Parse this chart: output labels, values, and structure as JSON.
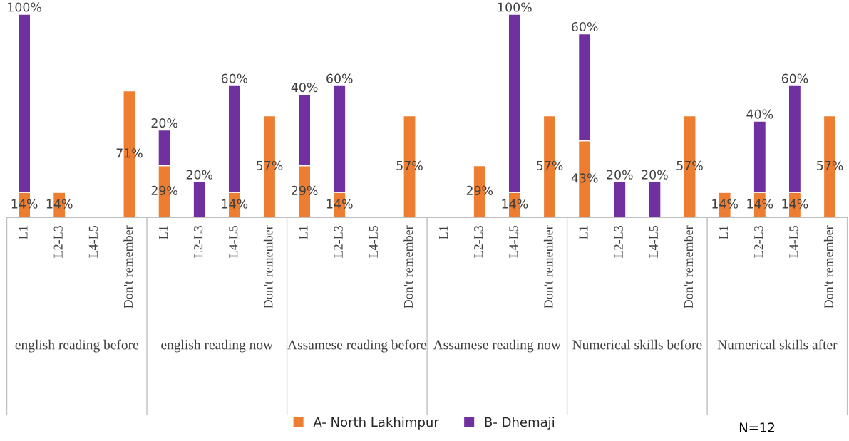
{
  "chart_data": {
    "type": "bar",
    "stacked": true,
    "categories": [
      "L1",
      "L2-L3",
      "L4-L5",
      "Don't remember",
      "L1",
      "L2-L3",
      "L4-L5",
      "Don't remember",
      "L1",
      "L2-L3",
      "L4-L5",
      "Don't remember",
      "L1",
      "L2-L3",
      "L4-L5",
      "Don't remember",
      "L1",
      "L2-L3",
      "L4-L5",
      "Don't remember",
      "L1",
      "L2-L3",
      "L4-L5",
      "Don't remember"
    ],
    "series": [
      {
        "name": "A- North Lakhimpur",
        "color": "#ed7d31",
        "values": [
          14,
          14,
          null,
          71,
          29,
          null,
          14,
          57,
          29,
          14,
          null,
          57,
          null,
          29,
          14,
          57,
          43,
          null,
          null,
          57,
          14,
          14,
          14,
          57
        ],
        "value_labels": [
          "14%",
          "14%",
          null,
          "71%",
          "29%",
          null,
          "14%",
          "57%",
          "29%",
          "14%",
          null,
          "57%",
          null,
          "29%",
          "14%",
          "57%",
          "43%",
          null,
          null,
          "57%",
          "14%",
          "14%",
          "14%",
          "57%"
        ]
      },
      {
        "name": "B- Dhemaji",
        "color": "#7030a0",
        "values": [
          100,
          null,
          null,
          null,
          20,
          20,
          60,
          null,
          40,
          60,
          null,
          null,
          null,
          null,
          100,
          null,
          60,
          20,
          20,
          null,
          null,
          40,
          60,
          null
        ],
        "value_labels": [
          "100%",
          null,
          null,
          null,
          "20%",
          "20%",
          "60%",
          null,
          "40%",
          "60%",
          null,
          null,
          null,
          null,
          "100%",
          null,
          "60%",
          "20%",
          "20%",
          null,
          null,
          "40%",
          "60%",
          null
        ]
      }
    ],
    "annotations": [
      "english reading before",
      "english reading now",
      "Assamese reading before",
      "Assamese reading now",
      "Numerical skills before",
      "Numerical skills after",
      "N=12"
    ],
    "tick_labels": "x",
    "grid": false,
    "legend": "bottom"
  }
}
